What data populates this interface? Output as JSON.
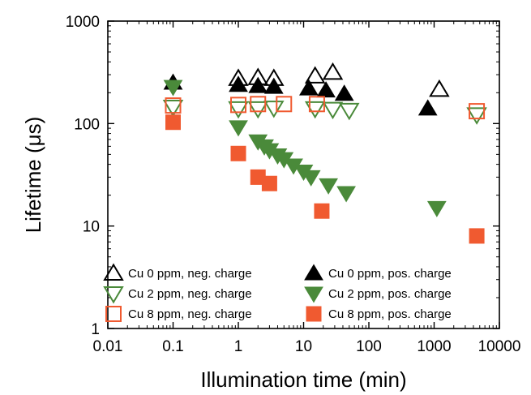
{
  "chart_data": {
    "type": "scatter",
    "xlabel": "Illumination time (min)",
    "ylabel": "Lifetime (μs)",
    "xscale": "log",
    "yscale": "log",
    "xlim": [
      0.01,
      10000
    ],
    "ylim": [
      1,
      1000
    ],
    "x_ticks": [
      0.01,
      0.1,
      1,
      10,
      100,
      1000,
      10000
    ],
    "x_tick_labels": [
      "0.01",
      "0.1",
      "1",
      "10",
      "100",
      "1000",
      "10000"
    ],
    "y_ticks": [
      1,
      10,
      100,
      1000
    ],
    "y_tick_labels": [
      "1",
      "10",
      "100",
      "1000"
    ],
    "grid": false,
    "legend_position": "bottom-left",
    "series": [
      {
        "name": "Cu 0 ppm, neg. charge",
        "marker": "triangle-up",
        "fill": "none",
        "color": "#000000",
        "points": [
          [
            1,
            275
          ],
          [
            2,
            280
          ],
          [
            3.5,
            275
          ],
          [
            15,
            290
          ],
          [
            28,
            315
          ],
          [
            1200,
            215
          ]
        ]
      },
      {
        "name": "Cu 0 ppm, pos. charge",
        "marker": "triangle-up",
        "fill": "solid",
        "color": "#000000",
        "points": [
          [
            0.1,
            250
          ],
          [
            1,
            238
          ],
          [
            2,
            232
          ],
          [
            3.5,
            228
          ],
          [
            12,
            220
          ],
          [
            22,
            210
          ],
          [
            42,
            195
          ],
          [
            800,
            140
          ]
        ]
      },
      {
        "name": "Cu 2 ppm, neg. charge",
        "marker": "triangle-down",
        "fill": "none",
        "color": "#4a8a3a",
        "points": [
          [
            0.1,
            145
          ],
          [
            1,
            140
          ],
          [
            2,
            140
          ],
          [
            3.5,
            142
          ],
          [
            15,
            140
          ],
          [
            28,
            138
          ],
          [
            50,
            135
          ],
          [
            4500,
            122
          ]
        ]
      },
      {
        "name": "Cu 2 ppm, pos. charge",
        "marker": "triangle-down",
        "fill": "solid",
        "color": "#4a8a3a",
        "points": [
          [
            0.1,
            228
          ],
          [
            1,
            92
          ],
          [
            2,
            67
          ],
          [
            2.5,
            60
          ],
          [
            3,
            55
          ],
          [
            4,
            49
          ],
          [
            5,
            45
          ],
          [
            7,
            39
          ],
          [
            10,
            34
          ],
          [
            13,
            30
          ],
          [
            24,
            25
          ],
          [
            45,
            21
          ],
          [
            1100,
            15
          ]
        ]
      },
      {
        "name": "Cu 8 ppm, neg. charge",
        "marker": "square",
        "fill": "none",
        "color": "#f05a30",
        "points": [
          [
            0.1,
            150
          ],
          [
            1,
            152
          ],
          [
            2,
            155
          ],
          [
            5,
            155
          ],
          [
            16,
            155
          ],
          [
            4500,
            132
          ]
        ]
      },
      {
        "name": "Cu 8 ppm, pos. charge",
        "marker": "square",
        "fill": "solid",
        "color": "#f05a30",
        "points": [
          [
            0.1,
            103
          ],
          [
            1,
            51
          ],
          [
            2,
            30
          ],
          [
            3,
            26
          ],
          [
            19,
            14
          ],
          [
            4500,
            8
          ]
        ]
      }
    ],
    "legend_order": [
      0,
      1,
      2,
      3,
      4,
      5
    ]
  }
}
